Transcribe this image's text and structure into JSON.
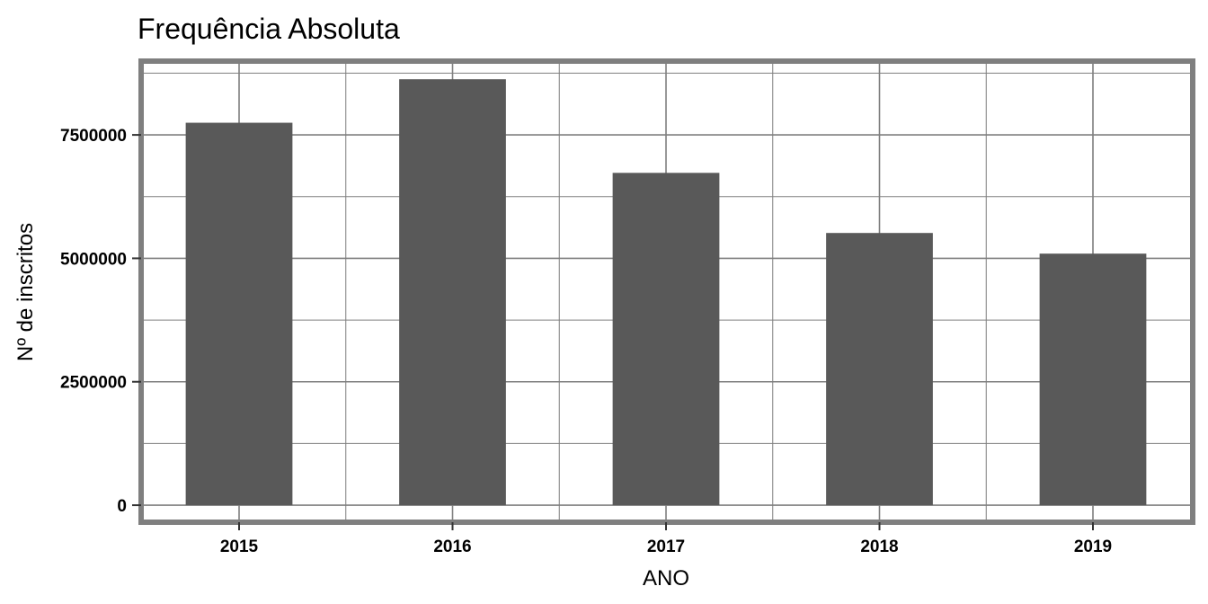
{
  "chart_data": {
    "type": "bar",
    "title": "Frequência Absoluta",
    "xlabel": "ANO",
    "ylabel": "Nº de inscritos",
    "categories": [
      "2015",
      "2016",
      "2017",
      "2018",
      "2019"
    ],
    "values": [
      7746427,
      8627367,
      6731203,
      5513747,
      5095270
    ],
    "yticks": [
      0,
      2500000,
      5000000,
      7500000
    ],
    "ytick_labels": [
      "0",
      "2500000",
      "5000000",
      "7500000"
    ],
    "ylim": [
      -290000,
      8940000
    ],
    "grid": true,
    "colors": {
      "bar": "#595959",
      "grid": "#7f7f7f",
      "border": "#7f7f7f"
    }
  }
}
